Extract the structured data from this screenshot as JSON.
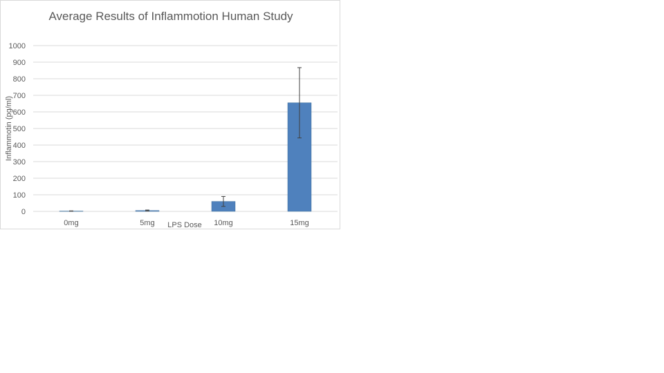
{
  "chart_data": {
    "type": "bar",
    "title": "Average Results of Inflammotion Human Study",
    "xlabel": "LPS Dose",
    "ylabel": "Inflammotin (pg/ml)",
    "categories": [
      "0mg",
      "5mg",
      "10mg",
      "15mg"
    ],
    "values": [
      2,
      5,
      60,
      655
    ],
    "error": [
      1,
      3,
      30,
      212
    ],
    "ylim": [
      0,
      1000
    ],
    "yticks": [
      0,
      100,
      200,
      300,
      400,
      500,
      600,
      700,
      800,
      900,
      1000
    ],
    "grid": true,
    "legend": "none",
    "colors": {
      "bar": "#4f81bd",
      "bar_edge": "#41719c",
      "grid": "#d9d9d9",
      "text": "#595959"
    }
  }
}
